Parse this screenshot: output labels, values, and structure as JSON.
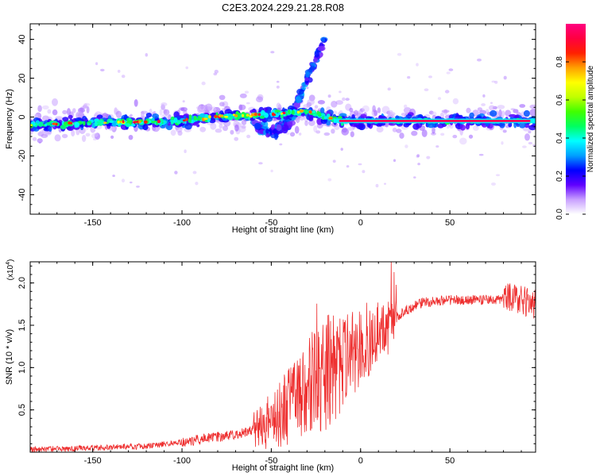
{
  "title": "C2E3.2024.229.21.28.R08",
  "chart_data": [
    {
      "type": "heatmap",
      "name": "spectrogram",
      "xlabel": "Height of straight line (km)",
      "ylabel": "Frequency (Hz)",
      "xlim": [
        -185,
        98
      ],
      "ylim": [
        -50,
        48
      ],
      "xticks": [
        -150,
        -100,
        -50,
        0,
        50
      ],
      "yticks": [
        -40,
        -20,
        0,
        20,
        40
      ],
      "tick_labels_x": [
        "-150",
        "-100",
        "-50",
        "0",
        "50"
      ],
      "tick_labels_y": [
        "-40",
        "-20",
        "0",
        "20",
        "40"
      ],
      "colorbar": {
        "label": "Normalized spectral amplitude",
        "range": [
          0,
          1
        ],
        "ticks": [
          0.0,
          0.2,
          0.4,
          0.6,
          0.8
        ],
        "tick_labels": [
          "0.0",
          "0.2",
          "0.4",
          "0.6",
          "0.8"
        ],
        "colormap": [
          "#ffffff",
          "#c8a0ff",
          "#6000ff",
          "#0000ff",
          "#00a0ff",
          "#00ffff",
          "#00ff60",
          "#40ff00",
          "#c0ff00",
          "#ffff00",
          "#ffa000",
          "#ff2000",
          "#ff0040",
          "#ff0080"
        ]
      },
      "band": {
        "center_hz": [
          {
            "x": -185,
            "y": -4
          },
          {
            "x": -150,
            "y": -3
          },
          {
            "x": -100,
            "y": -2
          },
          {
            "x": -80,
            "y": 0
          },
          {
            "x": -60,
            "y": 1
          },
          {
            "x": -40,
            "y": 2
          },
          {
            "x": -30,
            "y": 3
          },
          {
            "x": -20,
            "y": 0
          },
          {
            "x": -10,
            "y": -2
          },
          {
            "x": 0,
            "y": -2
          },
          {
            "x": 50,
            "y": -2
          },
          {
            "x": 98,
            "y": -2
          }
        ],
        "dispersive_branch": [
          {
            "x": -60,
            "y": -5
          },
          {
            "x": -50,
            "y": -8
          },
          {
            "x": -40,
            "y": -3
          },
          {
            "x": -35,
            "y": 8
          },
          {
            "x": -30,
            "y": 20
          },
          {
            "x": -25,
            "y": 30
          },
          {
            "x": -20,
            "y": 38
          }
        ]
      }
    },
    {
      "type": "line",
      "name": "snr",
      "xlabel": "Height of straight line (km)",
      "ylabel": "SNR (10 * v/v)",
      "y_multiplier": "(x10^4)",
      "xlim": [
        -185,
        98
      ],
      "ylim": [
        0,
        2.25
      ],
      "xticks": [
        -150,
        -100,
        -50,
        0,
        50
      ],
      "yticks": [
        0.5,
        1.0,
        1.5,
        2.0
      ],
      "tick_labels_x": [
        "-150",
        "-100",
        "-50",
        "0",
        "50"
      ],
      "tick_labels_y": [
        "0.5",
        "1.0",
        "1.5",
        "2.0"
      ],
      "color": "#ee3030",
      "trend": [
        {
          "x": -185,
          "y": 0.03
        },
        {
          "x": -150,
          "y": 0.05
        },
        {
          "x": -120,
          "y": 0.07
        },
        {
          "x": -100,
          "y": 0.12
        },
        {
          "x": -80,
          "y": 0.18
        },
        {
          "x": -65,
          "y": 0.23
        },
        {
          "x": -55,
          "y": 0.3
        },
        {
          "x": -45,
          "y": 0.45
        },
        {
          "x": -35,
          "y": 0.65
        },
        {
          "x": -25,
          "y": 0.85
        },
        {
          "x": -15,
          "y": 1.0
        },
        {
          "x": -5,
          "y": 1.15
        },
        {
          "x": 5,
          "y": 1.3
        },
        {
          "x": 15,
          "y": 1.5
        },
        {
          "x": 25,
          "y": 1.68
        },
        {
          "x": 35,
          "y": 1.77
        },
        {
          "x": 50,
          "y": 1.8
        },
        {
          "x": 70,
          "y": 1.8
        },
        {
          "x": 85,
          "y": 1.82
        },
        {
          "x": 98,
          "y": 1.75
        }
      ]
    }
  ]
}
